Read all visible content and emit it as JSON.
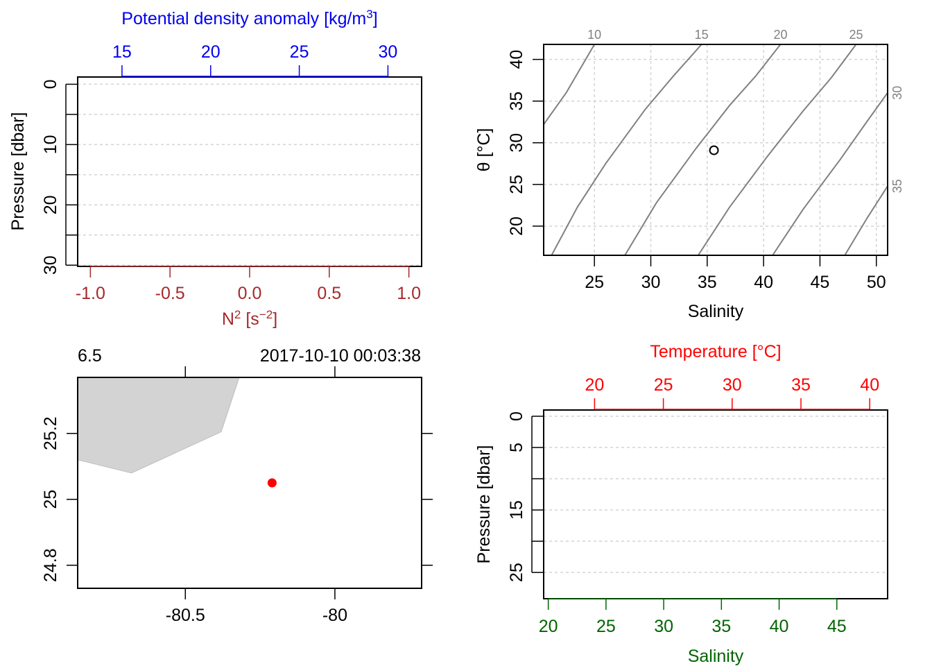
{
  "colors": {
    "density_axis": "#0000ee",
    "n2_axis": "#a52a2a",
    "temperature_axis": "#ff0000",
    "salinity_axis": "#006400",
    "isopycnal": "#808080",
    "grid": "#d3d3d3",
    "land": "#d3d3d3",
    "station": "#ff0000"
  },
  "chart_data": [
    {
      "type": "line",
      "panel": "density-profile",
      "top_axis": {
        "label": "Potential density anomaly [kg/m",
        "label_sup": "3",
        "label_end": "]",
        "ticks": [
          15,
          20,
          25,
          30
        ],
        "range": [
          12.5,
          31.9
        ]
      },
      "bottom_axis": {
        "label": "N",
        "label_sup1": "2",
        "label_mid": " [s",
        "label_sup2": "−2",
        "label_end": "]",
        "ticks": [
          "-1.0",
          "-0.5",
          "0.0",
          "0.5",
          "1.0"
        ],
        "range": [
          -1.08,
          1.08
        ]
      },
      "ylabel": "Pressure [dbar]",
      "y_ticks": [
        0,
        10,
        20,
        30
      ],
      "y_grid": [
        0,
        5,
        10,
        15,
        20,
        25,
        30
      ],
      "ylim": [
        -1.2,
        30.2
      ],
      "series": []
    },
    {
      "type": "scatter",
      "panel": "ts-diagram",
      "xlabel": "Salinity",
      "ylabel": "θ [°C]",
      "x_ticks": [
        25,
        30,
        35,
        40,
        45,
        50
      ],
      "y_ticks": [
        20,
        25,
        30,
        35,
        40
      ],
      "xlim": [
        20.5,
        51.0
      ],
      "ylim": [
        16.5,
        41.8
      ],
      "isopycnals": [
        {
          "label": "10",
          "points": [
            [
              20.5,
              32.2
            ],
            [
              22.5,
              36.0
            ],
            [
              25.0,
              41.8
            ]
          ]
        },
        {
          "label": "15",
          "points": [
            [
              21.2,
              16.5
            ],
            [
              23.5,
              22.3
            ],
            [
              26.0,
              27.5
            ],
            [
              29.5,
              34.0
            ],
            [
              32.0,
              38.0
            ],
            [
              34.5,
              41.8
            ]
          ]
        },
        {
          "label": "20",
          "points": [
            [
              27.7,
              16.5
            ],
            [
              30.5,
              22.8
            ],
            [
              34.0,
              29.3
            ],
            [
              37.0,
              34.5
            ],
            [
              39.3,
              38.0
            ],
            [
              41.5,
              41.8
            ]
          ]
        },
        {
          "label": "25",
          "points": [
            [
              34.2,
              16.5
            ],
            [
              37.0,
              22.3
            ],
            [
              40.3,
              28.3
            ],
            [
              43.5,
              33.8
            ],
            [
              46.0,
              37.8
            ],
            [
              48.2,
              41.8
            ]
          ]
        },
        {
          "label": "30",
          "points": [
            [
              40.8,
              16.5
            ],
            [
              43.5,
              22.0
            ],
            [
              46.8,
              28.0
            ],
            [
              49.2,
              32.6
            ],
            [
              51.0,
              36.0
            ]
          ]
        },
        {
          "label": "35",
          "points": [
            [
              47.2,
              16.5
            ],
            [
              49.2,
              21.0
            ],
            [
              51.0,
              24.8
            ]
          ]
        }
      ],
      "points": [
        {
          "x": 35.6,
          "y": 29.1
        }
      ]
    },
    {
      "type": "scatter",
      "panel": "station-map",
      "left_label": "6.5",
      "right_label": "2017-10-10 00:03:38",
      "x_ticks": [
        "-80.5",
        "-80"
      ],
      "x_tick_values": [
        -80.5,
        -80.0
      ],
      "y_ticks": [
        "24.8",
        "25",
        "25.2"
      ],
      "y_tick_values": [
        24.8,
        25.0,
        25.2
      ],
      "xlim": [
        -80.86,
        -79.71
      ],
      "ylim": [
        24.73,
        25.37
      ],
      "land": [
        [
          -80.86,
          25.37
        ],
        [
          -80.32,
          25.37
        ],
        [
          -80.38,
          25.205
        ],
        [
          -80.68,
          25.08
        ],
        [
          -80.86,
          25.12
        ]
      ],
      "points": [
        {
          "x": -80.21,
          "y": 25.05
        }
      ]
    },
    {
      "type": "line",
      "panel": "ts-profile",
      "top_axis": {
        "label": "Temperature [°C]",
        "ticks": [
          20,
          25,
          30,
          35,
          40
        ],
        "range": [
          16.3,
          41.3
        ]
      },
      "bottom_axis": {
        "label": "Salinity",
        "ticks": [
          20,
          25,
          30,
          35,
          40,
          45
        ],
        "range": [
          19.6,
          49.4
        ]
      },
      "ylabel": "Pressure [dbar]",
      "y_ticks": [
        0,
        5,
        15,
        25
      ],
      "y_grid": [
        0,
        5,
        10,
        15,
        20,
        25
      ],
      "ylim": [
        -1.0,
        29.2
      ],
      "series": []
    }
  ]
}
